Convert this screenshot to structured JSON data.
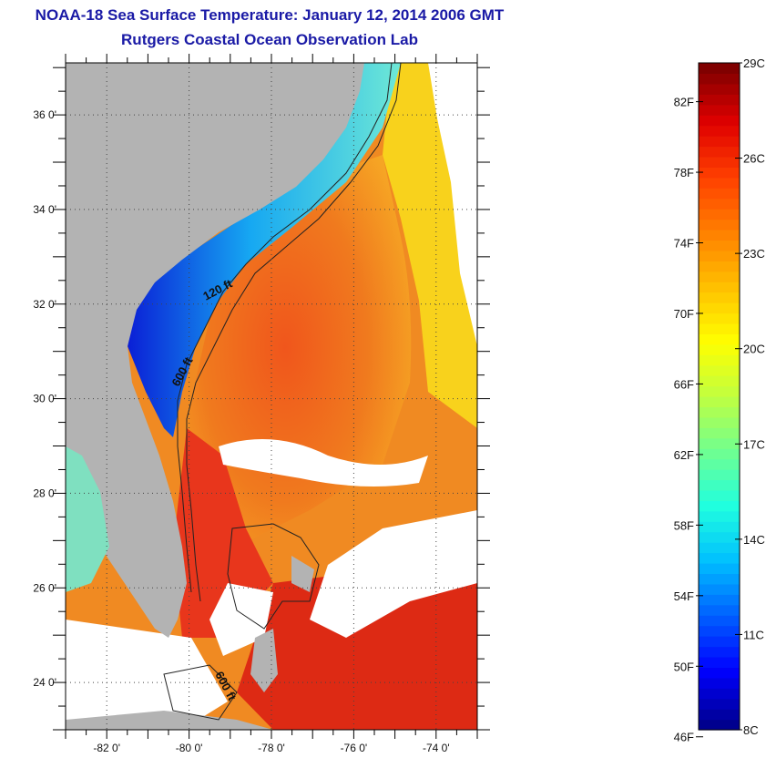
{
  "title": {
    "line1": "NOAA-18 Sea Surface Temperature:  January 12, 2014 2006 GMT",
    "line2": "Rutgers Coastal Ocean Observation Lab"
  },
  "map": {
    "lat_labels": [
      "36 0'",
      "34 0'",
      "32 0'",
      "30 0'",
      "28 0'",
      "26 0'",
      "24 0'"
    ],
    "lat_values": [
      36,
      34,
      32,
      30,
      28,
      26,
      24
    ],
    "lon_labels": [
      "-82 0'",
      "-80 0'",
      "-78 0'",
      "-76 0'",
      "-74 0'"
    ],
    "lon_values": [
      -82,
      -80,
      -78,
      -76,
      -74
    ],
    "lat_range": [
      23,
      37.1
    ],
    "lon_range": [
      -83,
      -73
    ],
    "isobath_labels": [
      "120 ft",
      "600 ft",
      "600 ft"
    ],
    "colors": {
      "land": "#b3b3b3",
      "cloud": "#ffffff",
      "warm": "#e8361c",
      "gulfstream": "#f06a1a"
    }
  },
  "colorbar": {
    "celsius_labels": [
      "29C",
      "26C",
      "23C",
      "20C",
      "17C",
      "14C",
      "11C",
      "8C"
    ],
    "celsius_values": [
      29,
      26,
      23,
      20,
      17,
      14,
      11,
      8
    ],
    "fahrenheit_labels": [
      "82F",
      "78F",
      "74F",
      "70F",
      "66F",
      "62F",
      "58F",
      "54F",
      "50F",
      "46F"
    ],
    "fahrenheit_values": [
      82,
      78,
      74,
      70,
      66,
      62,
      58,
      54,
      50,
      46
    ],
    "range_c": [
      8,
      29
    ],
    "palette": [
      "#00008f",
      "#0000ff",
      "#0060ff",
      "#00c0ff",
      "#20ffdf",
      "#70ff90",
      "#c0ff40",
      "#ffff00",
      "#ffc000",
      "#ff8000",
      "#ff4000",
      "#e00000",
      "#800000"
    ]
  }
}
